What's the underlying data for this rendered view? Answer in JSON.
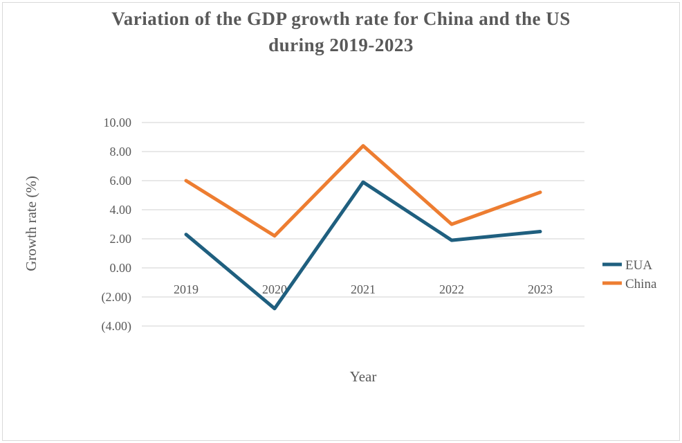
{
  "chart_data": {
    "type": "line",
    "title_lines": [
      "Variation of the GDP growth rate for China and the US",
      "during 2019-2023"
    ],
    "xlabel": "Year",
    "ylabel": "Growth rate (%)",
    "categories": [
      "2019",
      "2020",
      "2021",
      "2022",
      "2023"
    ],
    "ylim": [
      -4,
      10
    ],
    "yticks": [
      10,
      8,
      6,
      4,
      2,
      0,
      -2,
      -4
    ],
    "ytick_labels": [
      "10.00",
      "8.00",
      "6.00",
      "4.00",
      "2.00",
      "0.00",
      "(2.00)",
      "(4.00)"
    ],
    "grid": true,
    "legend_position": "right",
    "series": [
      {
        "name": "EUA",
        "color": "#1f5f7f",
        "values": [
          2.3,
          -2.8,
          5.9,
          1.9,
          2.5
        ]
      },
      {
        "name": "China",
        "color": "#ed7d31",
        "values": [
          6.0,
          2.2,
          8.4,
          3.0,
          5.2
        ]
      }
    ]
  }
}
